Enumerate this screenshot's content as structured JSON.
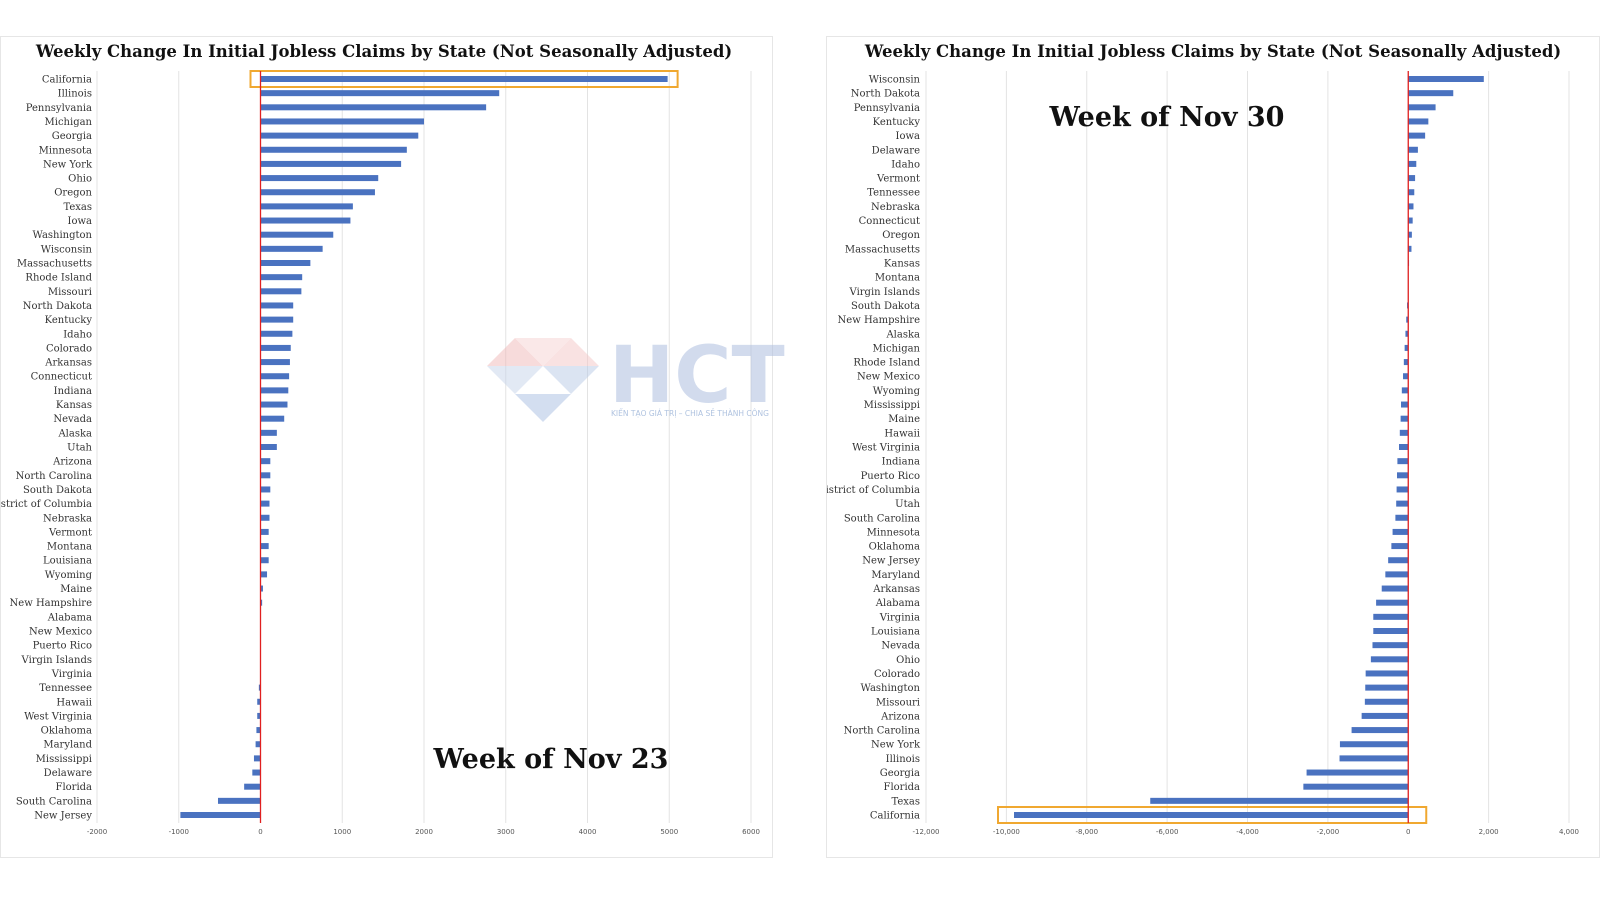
{
  "watermark": {
    "brand": "HCT",
    "tagline": "KIẾN TẠO GIÁ TRỊ – CHIA SẺ THÀNH CÔNG"
  },
  "chart_data": [
    {
      "type": "bar",
      "orientation": "horizontal",
      "title": "Weekly Change In Initial Jobless Claims by State (Not Seasonally Adjusted)",
      "annotation": "Week of Nov 23",
      "highlight": "California",
      "xlim": [
        -2000,
        6000
      ],
      "xticks": [
        -2000,
        -1000,
        0,
        1000,
        2000,
        3000,
        4000,
        5000,
        6000
      ],
      "xtick_labels": [
        "-2000",
        "-1000",
        "0",
        "1000",
        "2000",
        "3000",
        "4000",
        "5000",
        "6000"
      ],
      "grid": true,
      "bar_color": "#4a72c0",
      "zero_line_color": "#e02020",
      "highlight_color": "#f0a830",
      "categories": [
        "California",
        "Illinois",
        "Pennsylvania",
        "Michigan",
        "Georgia",
        "Minnesota",
        "New York",
        "Ohio",
        "Oregon",
        "Texas",
        "Iowa",
        "Washington",
        "Wisconsin",
        "Massachusetts",
        "Rhode Island",
        "Missouri",
        "North Dakota",
        "Kentucky",
        "Idaho",
        "Colorado",
        "Arkansas",
        "Connecticut",
        "Indiana",
        "Kansas",
        "Nevada",
        "Alaska",
        "Utah",
        "Arizona",
        "North Carolina",
        "South Dakota",
        "District of Columbia",
        "Nebraska",
        "Vermont",
        "Montana",
        "Louisiana",
        "Wyoming",
        "Maine",
        "New Hampshire",
        "Alabama",
        "New Mexico",
        "Puerto Rico",
        "Virgin Islands",
        "Virginia",
        "Tennessee",
        "Hawaii",
        "West Virginia",
        "Oklahoma",
        "Maryland",
        "Mississippi",
        "Delaware",
        "Florida",
        "South Carolina",
        "New Jersey"
      ],
      "values": [
        4980,
        2920,
        2760,
        2000,
        1930,
        1790,
        1720,
        1440,
        1400,
        1130,
        1100,
        890,
        760,
        610,
        510,
        500,
        400,
        400,
        390,
        370,
        360,
        350,
        340,
        330,
        290,
        200,
        200,
        120,
        120,
        120,
        110,
        110,
        100,
        100,
        100,
        80,
        30,
        20,
        0,
        0,
        0,
        0,
        0,
        -20,
        -40,
        -40,
        -50,
        -60,
        -80,
        -100,
        -200,
        -520,
        -980
      ]
    },
    {
      "type": "bar",
      "orientation": "horizontal",
      "title": "Weekly Change In Initial Jobless Claims by State (Not Seasonally Adjusted)",
      "annotation": "Week of Nov 30",
      "highlight": "California",
      "xlim": [
        -12000,
        4000
      ],
      "xticks": [
        -12000,
        -10000,
        -8000,
        -6000,
        -4000,
        -2000,
        0,
        2000,
        4000
      ],
      "xtick_labels": [
        "-12,000",
        "-10,000",
        "-8,000",
        "-6,000",
        "-4,000",
        "-2,000",
        "0",
        "2,000",
        "4,000"
      ],
      "grid": true,
      "bar_color": "#4a72c0",
      "zero_line_color": "#e02020",
      "highlight_color": "#f0a830",
      "categories": [
        "Wisconsin",
        "North Dakota",
        "Pennsylvania",
        "Kentucky",
        "Iowa",
        "Delaware",
        "Idaho",
        "Vermont",
        "Tennessee",
        "Nebraska",
        "Connecticut",
        "Oregon",
        "Massachusetts",
        "Kansas",
        "Montana",
        "Virgin Islands",
        "South Dakota",
        "New Hampshire",
        "Alaska",
        "Michigan",
        "Rhode Island",
        "New Mexico",
        "Wyoming",
        "Mississippi",
        "Maine",
        "Hawaii",
        "West Virginia",
        "Indiana",
        "Puerto Rico",
        "District of Columbia",
        "Utah",
        "South Carolina",
        "Minnesota",
        "Oklahoma",
        "New Jersey",
        "Maryland",
        "Arkansas",
        "Alabama",
        "Virginia",
        "Louisiana",
        "Nevada",
        "Ohio",
        "Colorado",
        "Washington",
        "Missouri",
        "Arizona",
        "North Carolina",
        "New York",
        "Illinois",
        "Georgia",
        "Florida",
        "Texas",
        "California"
      ],
      "values": [
        1880,
        1120,
        680,
        500,
        420,
        240,
        200,
        170,
        150,
        130,
        110,
        90,
        80,
        20,
        0,
        0,
        -30,
        -50,
        -70,
        -90,
        -110,
        -130,
        -160,
        -180,
        -190,
        -210,
        -230,
        -270,
        -280,
        -290,
        -300,
        -320,
        -390,
        -420,
        -500,
        -570,
        -660,
        -800,
        -870,
        -870,
        -890,
        -930,
        -1060,
        -1070,
        -1080,
        -1160,
        -1410,
        -1700,
        -1710,
        -2530,
        -2610,
        -6420,
        -9810
      ]
    }
  ]
}
